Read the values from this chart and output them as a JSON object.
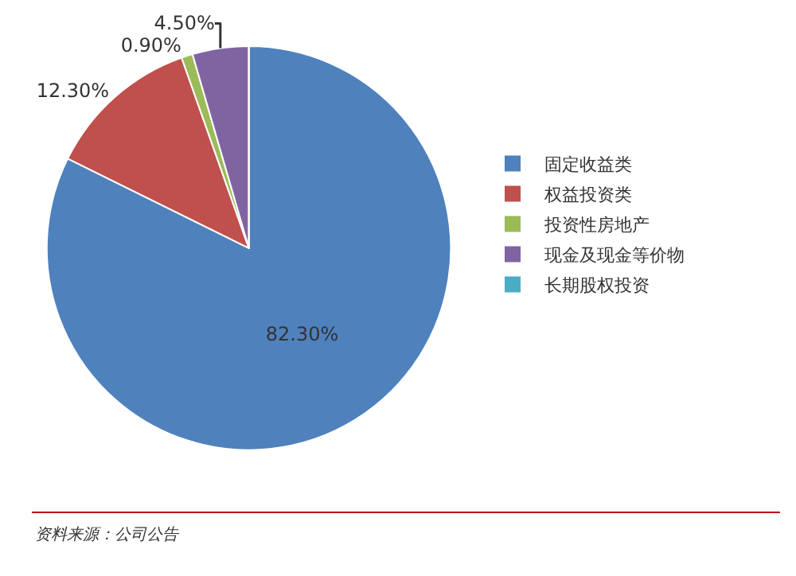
{
  "chart_data": {
    "type": "pie",
    "categories": [
      "固定收益类",
      "权益投资类",
      "投资性房地产",
      "现金及现金等价物",
      "长期股权投资"
    ],
    "values": [
      82.3,
      12.3,
      0.9,
      4.5,
      0
    ],
    "value_labels": [
      "82.30%",
      "12.30%",
      "0.90%",
      "4.50%",
      null
    ],
    "colors": [
      "#4f81bd",
      "#c0504d",
      "#9bbb59",
      "#8064a2",
      "#4bacc6"
    ],
    "legend": "right",
    "annotations": [
      "资料来源：公司公告"
    ]
  }
}
